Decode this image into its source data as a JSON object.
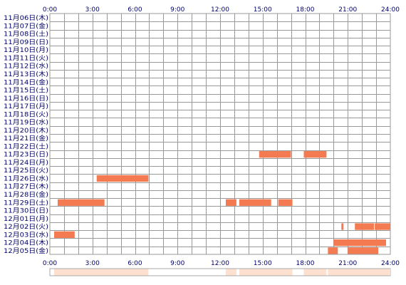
{
  "chart_data": {
    "type": "heatmap",
    "x_unit": "hour",
    "xlim": [
      0,
      24
    ],
    "x_ticks": [
      "0:00",
      "3:00",
      "6:00",
      "9:00",
      "12:00",
      "15:00",
      "18:00",
      "21:00",
      "24:00"
    ],
    "grid": true,
    "rows": [
      {
        "label": "11月06日(木)",
        "segments": []
      },
      {
        "label": "11月07日(金)",
        "segments": []
      },
      {
        "label": "11月08日(土)",
        "segments": []
      },
      {
        "label": "11月09日(日)",
        "segments": []
      },
      {
        "label": "11月10日(月)",
        "segments": []
      },
      {
        "label": "11月11日(火)",
        "segments": []
      },
      {
        "label": "11月12日(水)",
        "segments": []
      },
      {
        "label": "11月13日(木)",
        "segments": []
      },
      {
        "label": "11月14日(金)",
        "segments": []
      },
      {
        "label": "11月15日(土)",
        "segments": []
      },
      {
        "label": "11月16日(日)",
        "segments": []
      },
      {
        "label": "11月17日(月)",
        "segments": []
      },
      {
        "label": "11月18日(火)",
        "segments": []
      },
      {
        "label": "11月19日(水)",
        "segments": []
      },
      {
        "label": "11月20日(木)",
        "segments": []
      },
      {
        "label": "11月21日(金)",
        "segments": []
      },
      {
        "label": "11月22日(土)",
        "segments": []
      },
      {
        "label": "11月23日(日)",
        "segments": [
          [
            14.75,
            17.0
          ],
          [
            17.9,
            19.5
          ]
        ]
      },
      {
        "label": "11月24日(月)",
        "segments": []
      },
      {
        "label": "11月25日(火)",
        "segments": []
      },
      {
        "label": "11月26日(水)",
        "segments": [
          [
            3.3,
            6.95
          ]
        ]
      },
      {
        "label": "11月27日(木)",
        "segments": []
      },
      {
        "label": "11月28日(金)",
        "segments": []
      },
      {
        "label": "11月29日(土)",
        "segments": [
          [
            0.55,
            3.85
          ],
          [
            12.4,
            13.15
          ],
          [
            13.35,
            15.6
          ],
          [
            16.1,
            17.1
          ]
        ]
      },
      {
        "label": "11月30日(日)",
        "segments": []
      },
      {
        "label": "12月01日(月)",
        "segments": []
      },
      {
        "label": "12月02日(火)",
        "segments": [
          [
            20.55,
            20.7
          ],
          [
            21.5,
            22.85
          ],
          [
            22.9,
            24.0
          ]
        ]
      },
      {
        "label": "12月03日(水)",
        "segments": [
          [
            0.3,
            1.75
          ]
        ]
      },
      {
        "label": "12月04日(木)",
        "segments": [
          [
            20.0,
            23.7
          ]
        ]
      },
      {
        "label": "12月05日(金)",
        "segments": [
          [
            19.6,
            20.3
          ],
          [
            21.0,
            23.15
          ]
        ]
      }
    ],
    "colors": {
      "bar": "#f47a52",
      "grid": "#999999",
      "label": "#000066",
      "summary": "#fde0d0"
    }
  }
}
